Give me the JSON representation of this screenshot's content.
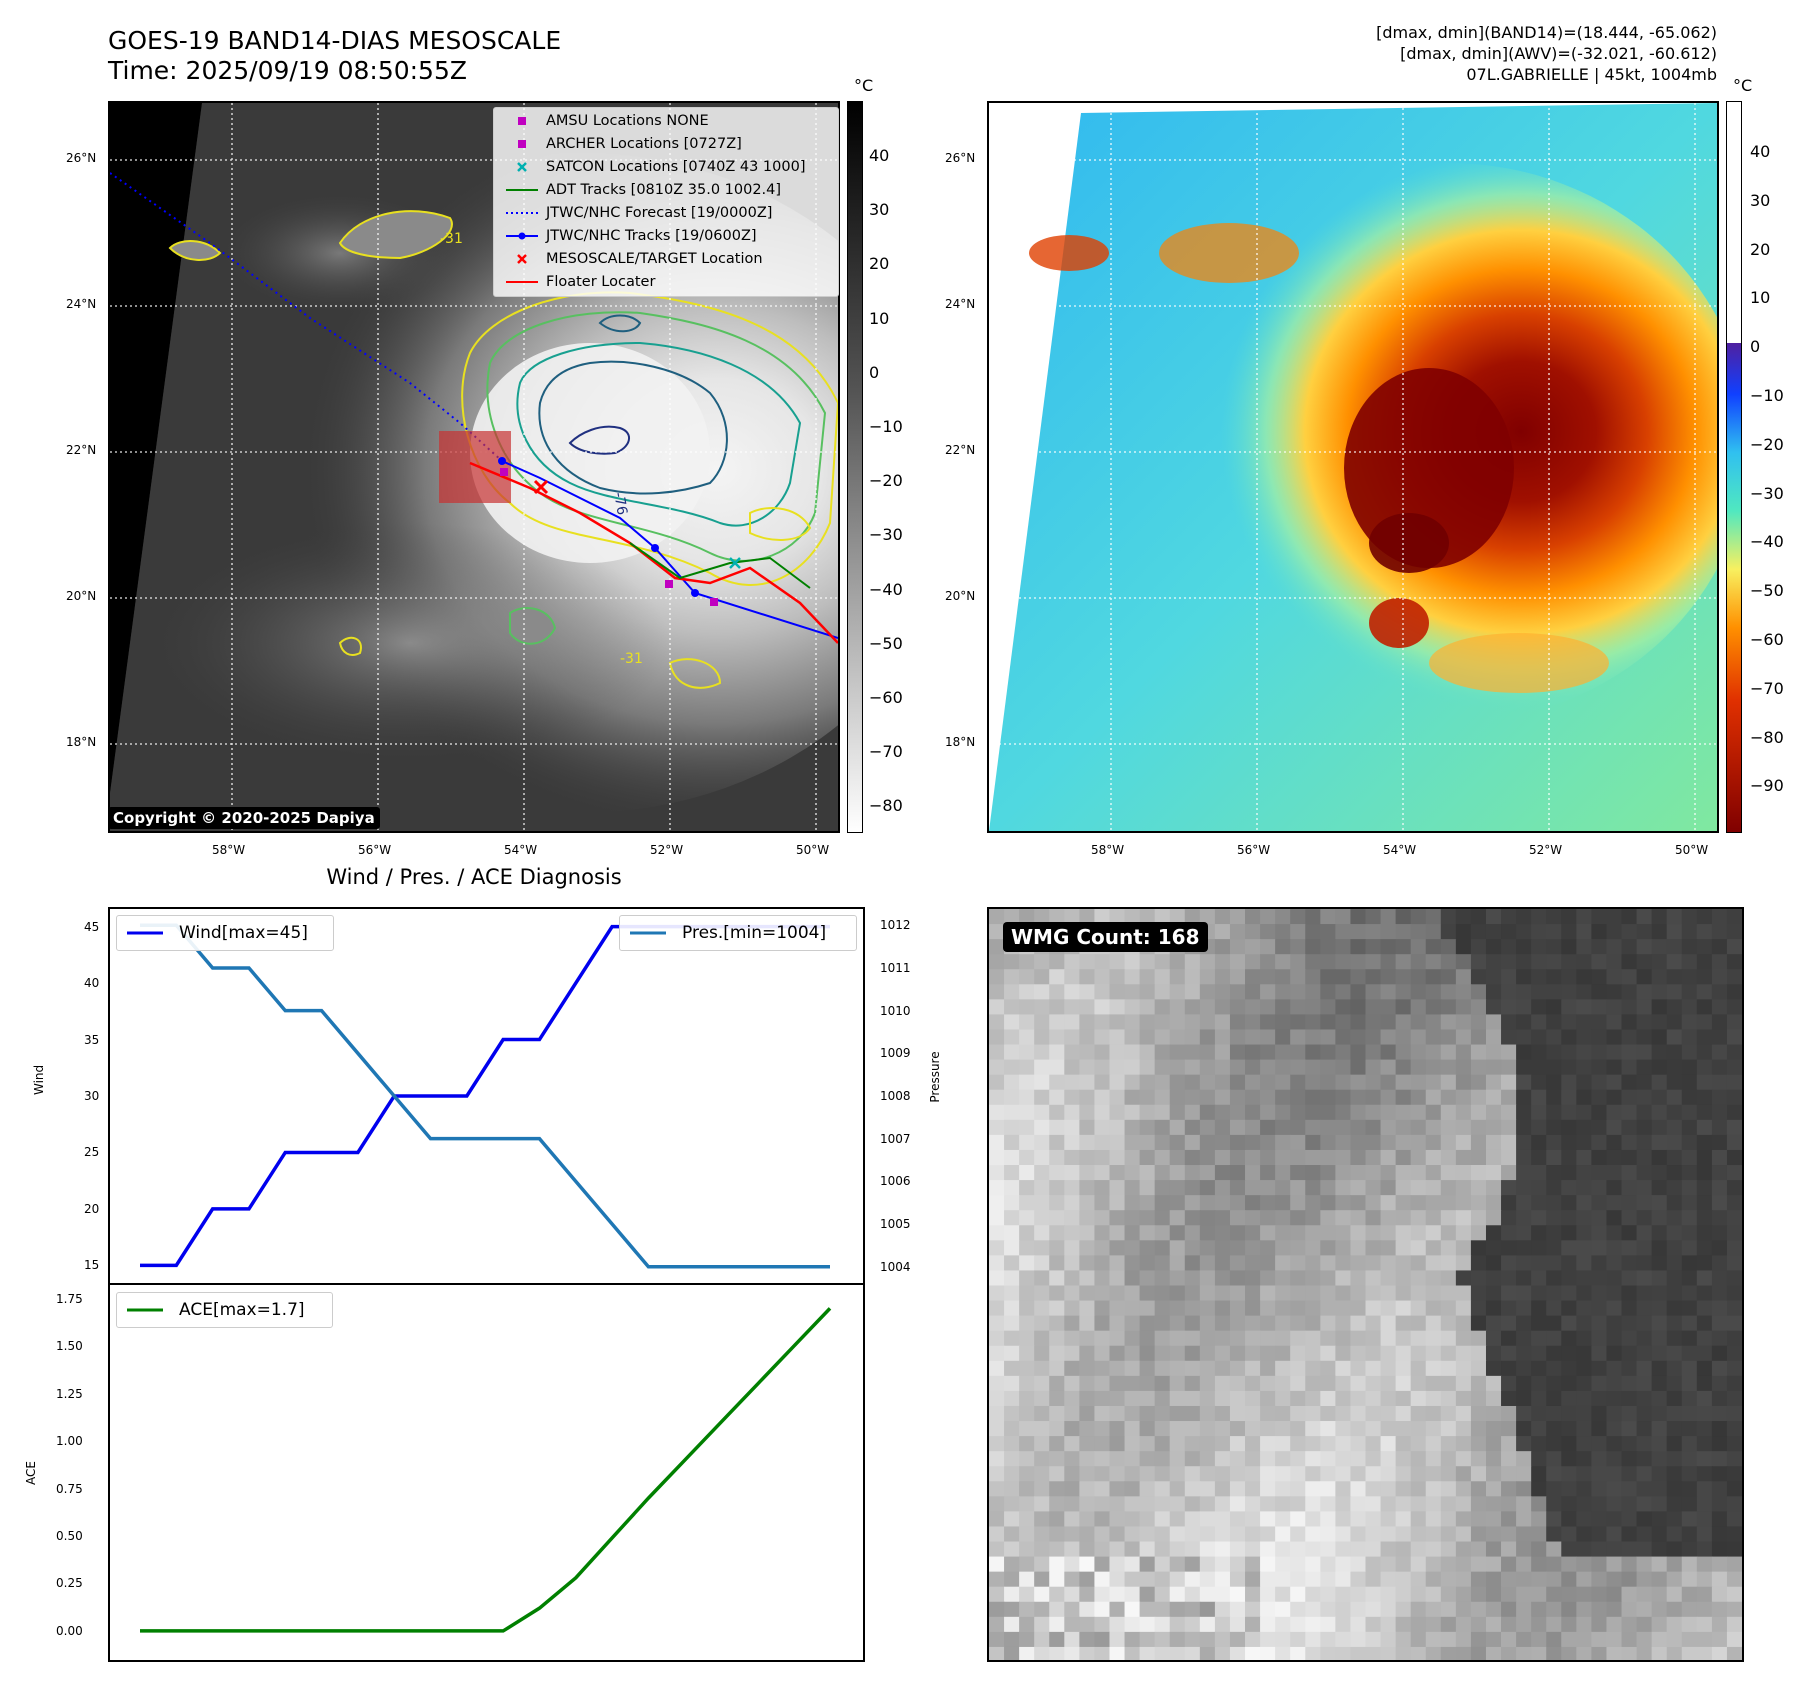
{
  "header": {
    "title_line1": "GOES-19 BAND14-DIAS MESOSCALE",
    "title_line2": "Time: 2025/09/19 08:50:55Z",
    "info_line1": "[dmax, dmin](BAND14)=(18.444, -65.062)",
    "info_line2": "[dmax, dmin](AWV)=(-32.021, -60.612)",
    "info_line3": "07L.GABRIELLE | 45kt, 1004mb"
  },
  "ir_panel": {
    "lat_ticks": [
      "26°N",
      "24°N",
      "22°N",
      "20°N",
      "18°N"
    ],
    "lon_ticks": [
      "58°W",
      "56°W",
      "54°W",
      "52°W",
      "50°W"
    ],
    "colorbar_unit": "°C",
    "colorbar_ticks": [
      "40",
      "30",
      "20",
      "10",
      "0",
      "−10",
      "−20",
      "−30",
      "−40",
      "−50",
      "−60",
      "−70",
      "−80"
    ],
    "copyright": "Copyright © 2020-2025 Dapiya",
    "contour_label_1": "-31",
    "contour_label_2": "-76",
    "contour_label_3": "-31",
    "legend": [
      {
        "label": "AMSU Locations NONE",
        "color": "#c000c0",
        "marker": "square"
      },
      {
        "label": "ARCHER Locations [0727Z]",
        "color": "#c000c0",
        "marker": "square"
      },
      {
        "label": "SATCON Locations [0740Z 43 1000]",
        "color": "#00b0b0",
        "marker": "x"
      },
      {
        "label": "ADT Tracks [0810Z 35.0 1002.4]",
        "color": "#008000",
        "marker": "line"
      },
      {
        "label": "JTWC/NHC Forecast [19/0000Z]",
        "color": "#0000ff",
        "marker": "dotted"
      },
      {
        "label": "JTWC/NHC Tracks [19/0600Z]",
        "color": "#0000ff",
        "marker": "line-dot"
      },
      {
        "label": "MESOSCALE/TARGET Location",
        "color": "#ff0000",
        "marker": "x"
      },
      {
        "label": "Floater Locater",
        "color": "#ff0000",
        "marker": "line"
      }
    ]
  },
  "awv_panel": {
    "lat_ticks": [
      "26°N",
      "24°N",
      "22°N",
      "20°N",
      "18°N"
    ],
    "lon_ticks": [
      "58°W",
      "56°W",
      "54°W",
      "52°W",
      "50°W"
    ],
    "colorbar_unit": "°C",
    "colorbar_ticks": [
      "40",
      "30",
      "20",
      "10",
      "0",
      "−10",
      "−20",
      "−30",
      "−40",
      "−50",
      "−60",
      "−70",
      "−80",
      "−90"
    ]
  },
  "diagnosis": {
    "title": "Wind / Pres. / ACE Diagnosis",
    "wind_legend": "Wind[max=45]",
    "pres_legend": "Pres.[min=1004]",
    "ace_legend": "ACE[max=1.7]",
    "wind_ylabel": "Wind",
    "pres_ylabel": "Pressure",
    "ace_ylabel": "ACE",
    "wind_ticks": [
      "45",
      "40",
      "35",
      "30",
      "25",
      "20",
      "15"
    ],
    "pres_ticks": [
      "1012",
      "1011",
      "1010",
      "1009",
      "1008",
      "1007",
      "1006",
      "1005",
      "1004"
    ],
    "ace_ticks": [
      "1.75",
      "1.50",
      "1.25",
      "1.00",
      "0.75",
      "0.50",
      "0.25",
      "0.00"
    ]
  },
  "wmg": {
    "count_label": "WMG Count: 168"
  },
  "chart_data": [
    {
      "type": "line",
      "title": "Wind / Pres. / ACE Diagnosis",
      "x": [
        0,
        1,
        2,
        3,
        4,
        5,
        6,
        7,
        8,
        9,
        10,
        11,
        12,
        13,
        14,
        15,
        16,
        17,
        18,
        19
      ],
      "series": [
        {
          "name": "Wind[max=45]",
          "axis": "left",
          "color": "#0000ee",
          "values": [
            15,
            15,
            20,
            20,
            25,
            25,
            25,
            30,
            30,
            30,
            35,
            35,
            40,
            45,
            45,
            45,
            45,
            45,
            45,
            45
          ]
        },
        {
          "name": "Pres.[min=1004]",
          "axis": "right",
          "color": "#1f77b4",
          "values": [
            1012,
            1012,
            1011,
            1011,
            1010,
            1010,
            1009,
            1008,
            1007,
            1007,
            1007,
            1007,
            1006,
            1005,
            1004,
            1004,
            1004,
            1004,
            1004,
            1004
          ]
        }
      ],
      "ylabel": "Wind",
      "ylim": [
        14.5,
        45.5
      ],
      "y2label": "Pressure",
      "y2lim": [
        1003.9,
        1012.1
      ]
    },
    {
      "type": "line",
      "x": [
        0,
        1,
        2,
        3,
        4,
        5,
        6,
        7,
        8,
        9,
        10,
        11,
        12,
        13,
        14,
        15,
        16,
        17,
        18,
        19
      ],
      "series": [
        {
          "name": "ACE[max=1.7]",
          "color": "#008000",
          "values": [
            0,
            0,
            0,
            0,
            0,
            0,
            0,
            0,
            0,
            0,
            0,
            0.12,
            0.28,
            0.49,
            0.7,
            0.9,
            1.1,
            1.3,
            1.5,
            1.7
          ]
        }
      ],
      "ylabel": "ACE",
      "ylim": [
        -0.09,
        1.76
      ]
    }
  ]
}
